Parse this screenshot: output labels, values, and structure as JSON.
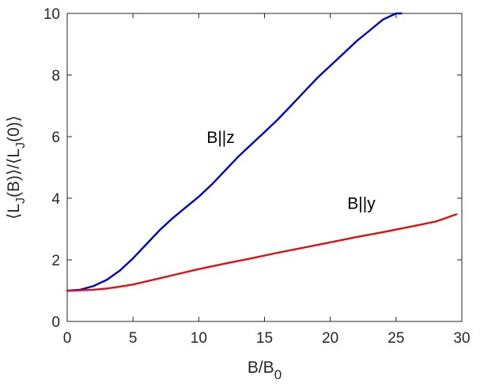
{
  "chart_data": {
    "type": "line",
    "xlabel": "B/B",
    "xlabel_sub": "0",
    "ylabel_parts": [
      "⟨L",
      "J",
      "(B)⟩/⟨L",
      "J",
      "(0)⟩"
    ],
    "xlim": [
      0,
      30
    ],
    "ylim": [
      0,
      10
    ],
    "xticks": [
      0,
      5,
      10,
      15,
      20,
      25,
      30
    ],
    "yticks": [
      0,
      2,
      4,
      6,
      8,
      10
    ],
    "grid": false,
    "box": true,
    "series": [
      {
        "color": "#0000cc",
        "x": [
          0,
          1,
          2,
          3,
          4,
          5,
          6,
          7,
          8,
          9,
          10,
          11,
          12,
          13,
          14,
          15,
          16,
          17,
          18,
          19,
          20,
          21,
          22,
          23,
          24,
          25,
          25.4
        ],
        "y": [
          1.0,
          1.03,
          1.15,
          1.35,
          1.65,
          2.05,
          2.5,
          2.95,
          3.35,
          3.7,
          4.05,
          4.45,
          4.9,
          5.35,
          5.75,
          6.15,
          6.55,
          7.0,
          7.45,
          7.9,
          8.3,
          8.7,
          9.1,
          9.45,
          9.8,
          10.0,
          10.0
        ]
      },
      {
        "color": "#dd1111",
        "x": [
          0,
          1,
          2,
          3,
          4,
          5,
          6,
          7,
          8,
          10,
          12,
          14,
          16,
          18,
          20,
          22,
          24,
          26,
          28,
          29.6
        ],
        "y": [
          1.0,
          1.01,
          1.03,
          1.07,
          1.13,
          1.2,
          1.3,
          1.4,
          1.5,
          1.7,
          1.88,
          2.05,
          2.23,
          2.4,
          2.57,
          2.74,
          2.9,
          3.07,
          3.24,
          3.48
        ]
      }
    ],
    "annotations": [
      {
        "text": "B||z",
        "x": 10.6,
        "y": 5.8
      },
      {
        "text": "B||y",
        "x": 21.3,
        "y": 3.65
      }
    ]
  }
}
